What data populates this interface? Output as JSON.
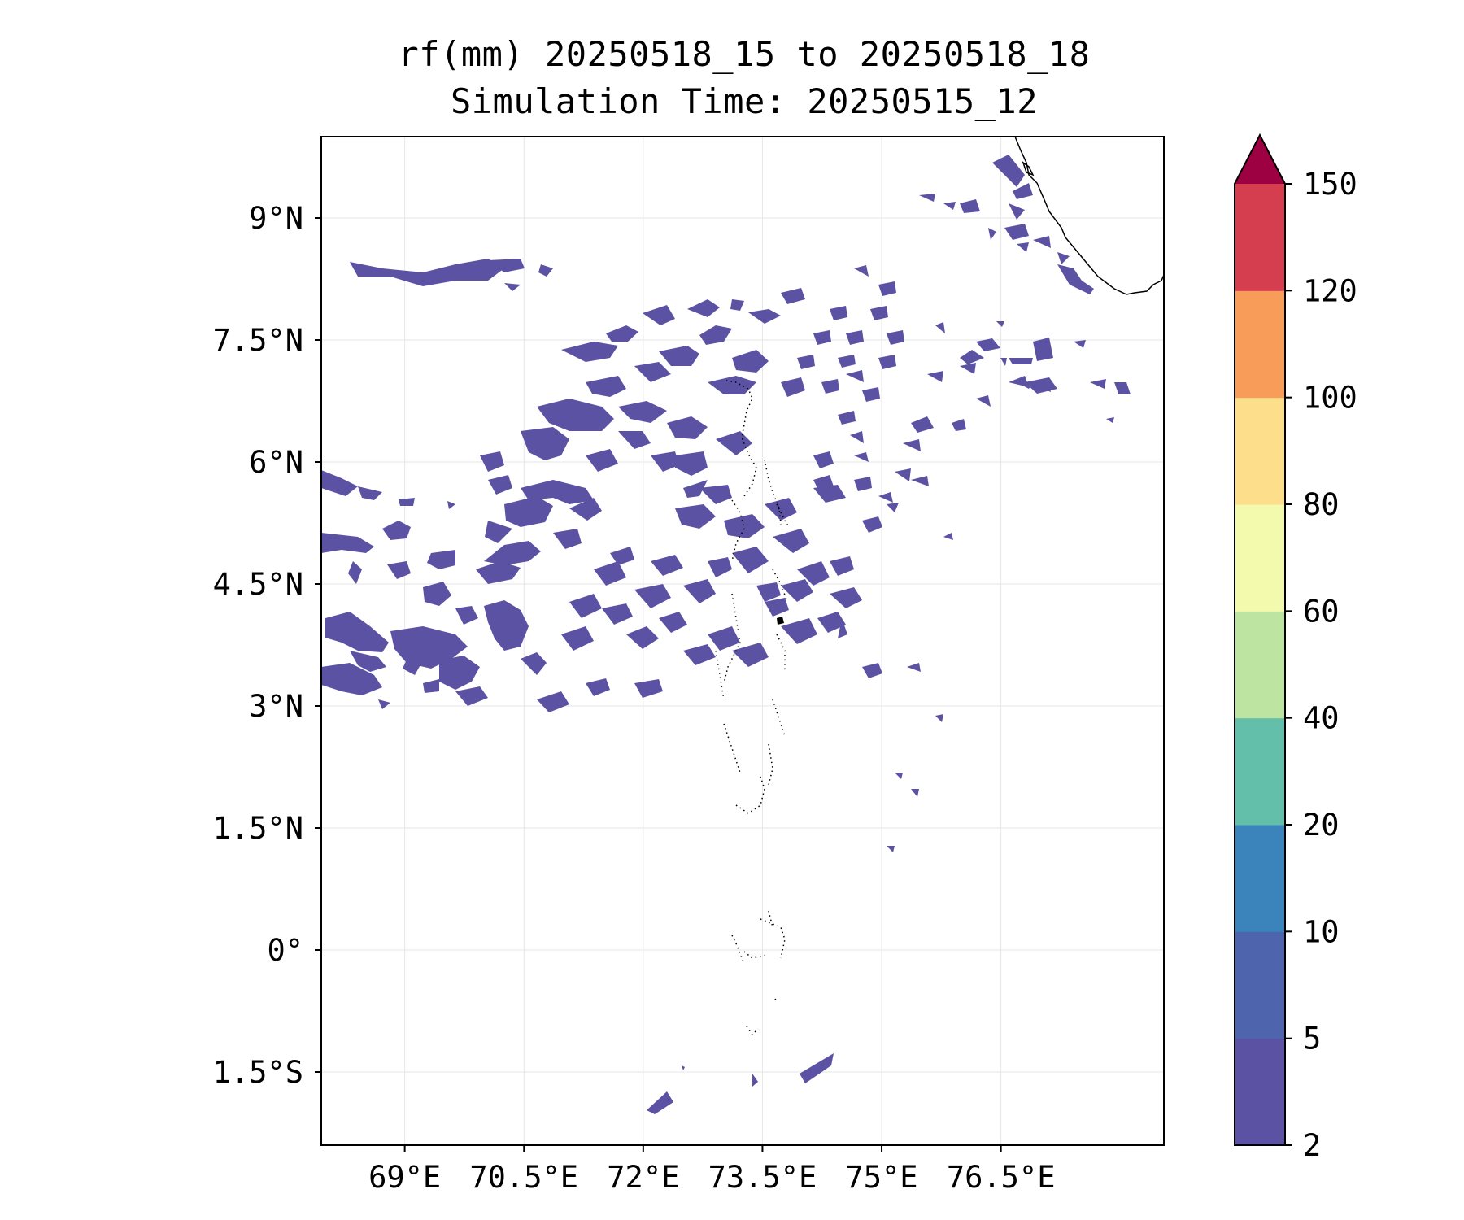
{
  "title": {
    "line1": "rf(mm) 20250518_15 to 20250518_18",
    "line2": "Simulation Time: 20250515_12"
  },
  "map": {
    "lon_range": [
      67.95,
      78.55
    ],
    "lat_range": [
      -2.4,
      10.0
    ],
    "x_ticks": [
      {
        "value": 69,
        "label": "69°E"
      },
      {
        "value": 70.5,
        "label": "70.5°E"
      },
      {
        "value": 72,
        "label": "72°E"
      },
      {
        "value": 73.5,
        "label": "73.5°E"
      },
      {
        "value": 75,
        "label": "75°E"
      },
      {
        "value": 76.5,
        "label": "76.5°E"
      }
    ],
    "y_ticks": [
      {
        "value": 9,
        "label": "9°N"
      },
      {
        "value": 7.5,
        "label": "7.5°N"
      },
      {
        "value": 6,
        "label": "6°N"
      },
      {
        "value": 4.5,
        "label": "4.5°N"
      },
      {
        "value": 3,
        "label": "3°N"
      },
      {
        "value": 1.5,
        "label": "1.5°N"
      },
      {
        "value": 0,
        "label": "0°"
      },
      {
        "value": -1.5,
        "label": "1.5°S"
      }
    ],
    "grid": true,
    "rain_color": "#5b52a3",
    "rain_color_heavy": "#4f64ad",
    "coast_color": "#000000"
  },
  "colorbar": {
    "levels": [
      "2",
      "5",
      "10",
      "20",
      "40",
      "60",
      "80",
      "100",
      "120",
      "150"
    ],
    "colors": [
      "#5b52a3",
      "#4e65ad",
      "#3a83bb",
      "#63bfaa",
      "#bde4a1",
      "#f3faad",
      "#fddf8b",
      "#f89c59",
      "#d53e4f"
    ],
    "extend_color": "#9e0142"
  }
}
